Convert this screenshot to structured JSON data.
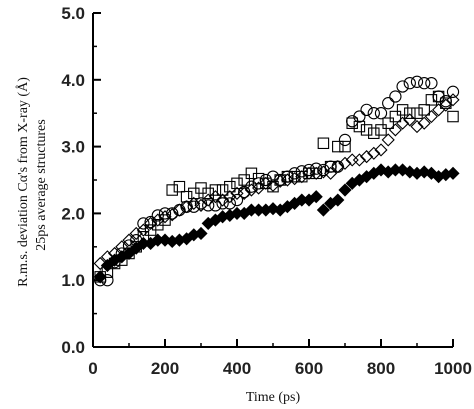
{
  "chart_data": {
    "type": "scatter",
    "title": "",
    "xlabel": "Time (ps)",
    "ylabel": [
      "R.m.s. deviation Cα's  from X-ray  (Å)",
      "25ps average structures"
    ],
    "xlim": [
      0,
      1000
    ],
    "ylim": [
      0,
      5
    ],
    "x_ticks": [
      0,
      200,
      400,
      600,
      800,
      1000
    ],
    "x_tick_labels": [
      "0",
      "200",
      "400",
      "600",
      "800",
      "1000"
    ],
    "y_ticks": [
      0,
      1,
      2,
      3,
      4,
      5
    ],
    "y_tick_labels": [
      "0.0",
      "1.0",
      "2.0",
      "3.0",
      "4.0",
      "5.0"
    ],
    "grid": false,
    "legend": "none",
    "series": [
      {
        "marker": "circle",
        "color": "#000000",
        "fill": "none",
        "points": [
          [
            20,
            1.0
          ],
          [
            40,
            1.0
          ],
          [
            60,
            1.27
          ],
          [
            80,
            1.4
          ],
          [
            100,
            1.52
          ],
          [
            120,
            1.6
          ],
          [
            140,
            1.85
          ],
          [
            160,
            1.87
          ],
          [
            180,
            1.97
          ],
          [
            200,
            2.0
          ],
          [
            220,
            2.0
          ],
          [
            240,
            2.05
          ],
          [
            260,
            2.1
          ],
          [
            280,
            2.1
          ],
          [
            300,
            2.15
          ],
          [
            320,
            2.12
          ],
          [
            340,
            2.12
          ],
          [
            360,
            2.15
          ],
          [
            380,
            2.15
          ],
          [
            400,
            2.2
          ],
          [
            420,
            2.32
          ],
          [
            440,
            2.4
          ],
          [
            460,
            2.45
          ],
          [
            480,
            2.5
          ],
          [
            500,
            2.55
          ],
          [
            520,
            2.5
          ],
          [
            540,
            2.55
          ],
          [
            560,
            2.6
          ],
          [
            580,
            2.63
          ],
          [
            600,
            2.65
          ],
          [
            620,
            2.67
          ],
          [
            640,
            2.65
          ],
          [
            660,
            2.7
          ],
          [
            680,
            2.7
          ],
          [
            700,
            3.1
          ],
          [
            720,
            3.38
          ],
          [
            740,
            3.45
          ],
          [
            760,
            3.55
          ],
          [
            780,
            3.5
          ],
          [
            800,
            3.5
          ],
          [
            820,
            3.65
          ],
          [
            840,
            3.75
          ],
          [
            860,
            3.9
          ],
          [
            880,
            3.95
          ],
          [
            900,
            3.97
          ],
          [
            920,
            3.95
          ],
          [
            940,
            3.95
          ],
          [
            960,
            3.75
          ],
          [
            980,
            3.68
          ],
          [
            1000,
            3.82
          ]
        ]
      },
      {
        "marker": "square",
        "color": "#000000",
        "fill": "none",
        "points": [
          [
            20,
            1.05
          ],
          [
            40,
            1.12
          ],
          [
            60,
            1.25
          ],
          [
            80,
            1.3
          ],
          [
            100,
            1.4
          ],
          [
            120,
            1.5
          ],
          [
            140,
            1.65
          ],
          [
            160,
            1.75
          ],
          [
            180,
            1.83
          ],
          [
            200,
            1.9
          ],
          [
            220,
            2.35
          ],
          [
            240,
            2.4
          ],
          [
            260,
            2.25
          ],
          [
            280,
            2.3
          ],
          [
            300,
            2.38
          ],
          [
            320,
            2.3
          ],
          [
            340,
            2.35
          ],
          [
            360,
            2.35
          ],
          [
            380,
            2.4
          ],
          [
            400,
            2.45
          ],
          [
            420,
            2.5
          ],
          [
            440,
            2.6
          ],
          [
            460,
            2.52
          ],
          [
            480,
            2.45
          ],
          [
            500,
            2.4
          ],
          [
            520,
            2.5
          ],
          [
            540,
            2.55
          ],
          [
            560,
            2.55
          ],
          [
            580,
            2.55
          ],
          [
            600,
            2.6
          ],
          [
            620,
            2.6
          ],
          [
            640,
            3.05
          ],
          [
            660,
            2.7
          ],
          [
            680,
            3.0
          ],
          [
            700,
            3.0
          ],
          [
            720,
            3.35
          ],
          [
            740,
            3.3
          ],
          [
            760,
            3.25
          ],
          [
            780,
            3.2
          ],
          [
            800,
            3.25
          ],
          [
            820,
            3.35
          ],
          [
            840,
            3.45
          ],
          [
            860,
            3.55
          ],
          [
            880,
            3.5
          ],
          [
            900,
            3.5
          ],
          [
            920,
            3.55
          ],
          [
            940,
            3.7
          ],
          [
            960,
            3.75
          ],
          [
            980,
            3.65
          ],
          [
            1000,
            3.45
          ]
        ]
      },
      {
        "marker": "diamond",
        "color": "#000000",
        "fill": "none",
        "points": [
          [
            20,
            1.25
          ],
          [
            40,
            1.35
          ],
          [
            60,
            1.4
          ],
          [
            80,
            1.5
          ],
          [
            100,
            1.6
          ],
          [
            120,
            1.7
          ],
          [
            140,
            1.75
          ],
          [
            160,
            1.85
          ],
          [
            180,
            1.9
          ],
          [
            200,
            1.95
          ],
          [
            220,
            1.98
          ],
          [
            240,
            2.05
          ],
          [
            260,
            2.1
          ],
          [
            280,
            2.15
          ],
          [
            300,
            2.12
          ],
          [
            320,
            2.2
          ],
          [
            340,
            2.25
          ],
          [
            360,
            2.2
          ],
          [
            380,
            2.25
          ],
          [
            400,
            2.3
          ],
          [
            420,
            2.3
          ],
          [
            440,
            2.35
          ],
          [
            460,
            2.38
          ],
          [
            480,
            2.45
          ],
          [
            500,
            2.42
          ],
          [
            520,
            2.48
          ],
          [
            540,
            2.5
          ],
          [
            560,
            2.52
          ],
          [
            580,
            2.55
          ],
          [
            600,
            2.6
          ],
          [
            620,
            2.6
          ],
          [
            640,
            2.62
          ],
          [
            660,
            2.6
          ],
          [
            680,
            2.7
          ],
          [
            700,
            2.75
          ],
          [
            720,
            2.8
          ],
          [
            740,
            2.8
          ],
          [
            760,
            2.85
          ],
          [
            780,
            2.9
          ],
          [
            800,
            2.95
          ],
          [
            820,
            3.1
          ],
          [
            840,
            3.25
          ],
          [
            860,
            3.35
          ],
          [
            880,
            3.4
          ],
          [
            900,
            3.3
          ],
          [
            920,
            3.35
          ],
          [
            940,
            3.45
          ],
          [
            960,
            3.55
          ],
          [
            980,
            3.62
          ],
          [
            1000,
            3.7
          ]
        ]
      },
      {
        "marker": "diamond",
        "color": "#000000",
        "fill": "#000000",
        "points": [
          [
            20,
            1.05
          ],
          [
            40,
            1.22
          ],
          [
            60,
            1.3
          ],
          [
            80,
            1.35
          ],
          [
            100,
            1.4
          ],
          [
            120,
            1.48
          ],
          [
            140,
            1.55
          ],
          [
            160,
            1.55
          ],
          [
            180,
            1.6
          ],
          [
            200,
            1.6
          ],
          [
            220,
            1.58
          ],
          [
            240,
            1.6
          ],
          [
            260,
            1.62
          ],
          [
            280,
            1.68
          ],
          [
            300,
            1.7
          ],
          [
            320,
            1.85
          ],
          [
            340,
            1.9
          ],
          [
            360,
            1.95
          ],
          [
            380,
            1.97
          ],
          [
            400,
            2.0
          ],
          [
            420,
            2.0
          ],
          [
            440,
            2.05
          ],
          [
            460,
            2.05
          ],
          [
            480,
            2.05
          ],
          [
            500,
            2.07
          ],
          [
            520,
            2.05
          ],
          [
            540,
            2.1
          ],
          [
            560,
            2.15
          ],
          [
            580,
            2.2
          ],
          [
            600,
            2.2
          ],
          [
            620,
            2.25
          ],
          [
            640,
            2.05
          ],
          [
            660,
            2.15
          ],
          [
            680,
            2.2
          ],
          [
            700,
            2.35
          ],
          [
            720,
            2.45
          ],
          [
            740,
            2.5
          ],
          [
            760,
            2.55
          ],
          [
            780,
            2.6
          ],
          [
            800,
            2.65
          ],
          [
            820,
            2.62
          ],
          [
            840,
            2.65
          ],
          [
            860,
            2.65
          ],
          [
            880,
            2.62
          ],
          [
            900,
            2.6
          ],
          [
            920,
            2.62
          ],
          [
            940,
            2.6
          ],
          [
            960,
            2.55
          ],
          [
            980,
            2.58
          ],
          [
            1000,
            2.6
          ]
        ]
      }
    ]
  }
}
